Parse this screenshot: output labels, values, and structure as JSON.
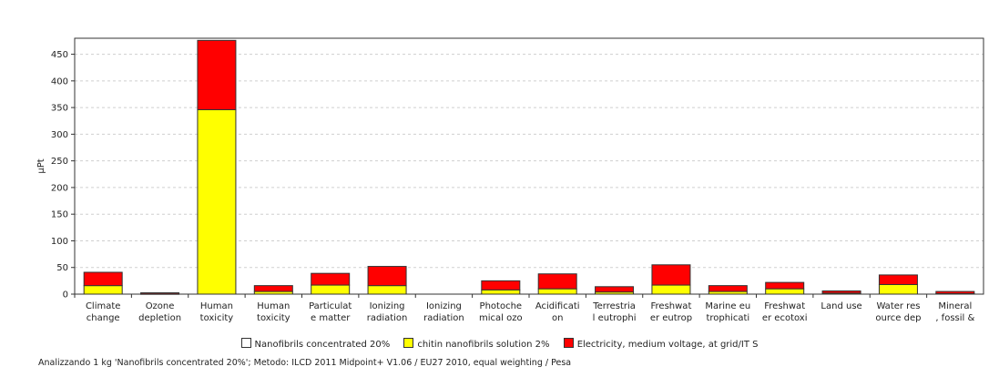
{
  "chart_data": {
    "type": "bar",
    "stacked": true,
    "ylabel": "µPt",
    "ylim": [
      0,
      480
    ],
    "yticks": [
      0,
      50,
      100,
      150,
      200,
      250,
      300,
      350,
      400,
      450
    ],
    "categories": [
      [
        "Climate",
        "change"
      ],
      [
        "Ozone",
        "depletion"
      ],
      [
        "Human",
        "toxicity"
      ],
      [
        "Human",
        "toxicity"
      ],
      [
        "Particulat",
        "e matter"
      ],
      [
        "Ionizing",
        "radiation"
      ],
      [
        "Ionizing",
        "radiation"
      ],
      [
        "Photoche",
        "mical ozo"
      ],
      [
        "Acidificati",
        "on"
      ],
      [
        "Terrestria",
        "l eutrophi"
      ],
      [
        "Freshwat",
        "er eutrop"
      ],
      [
        "Marine eu",
        "trophicati"
      ],
      [
        "Freshwat",
        "er ecotoxi"
      ],
      [
        "Land use",
        ""
      ],
      [
        "Water res",
        "ource dep"
      ],
      [
        "Mineral",
        ", fossil &"
      ]
    ],
    "series": [
      {
        "name": "Nanofibrils concentrated 20%",
        "color": "#ffffff",
        "values": [
          0,
          0,
          0,
          0,
          0,
          0,
          0,
          0,
          0,
          0,
          0,
          0,
          0,
          0,
          0,
          0
        ]
      },
      {
        "name": "chitin nanofibrils solution 2%",
        "color": "#ffff00",
        "values": [
          16,
          0.5,
          346,
          5,
          17,
          16,
          0,
          8,
          10,
          4,
          17,
          5,
          10,
          2,
          18,
          1
        ]
      },
      {
        "name": "Electricity, medium voltage, at grid/IT S",
        "color": "#ff0000",
        "values": [
          25,
          2,
          130,
          11,
          22,
          36,
          0,
          17,
          28,
          10,
          38,
          11,
          12,
          4,
          18,
          4
        ]
      }
    ],
    "legend_position": "bottom",
    "grid": true
  },
  "legend": {
    "item1": "Nanofibrils concentrated 20%",
    "item2": "chitin nanofibrils solution 2%",
    "item3": "Electricity, medium voltage, at grid/IT S"
  },
  "caption": "Analizzando 1 kg 'Nanofibrils concentrated 20%'; Metodo: ILCD 2011 Midpoint+ V1.06 / EU27 2010, equal weighting / Pesa"
}
